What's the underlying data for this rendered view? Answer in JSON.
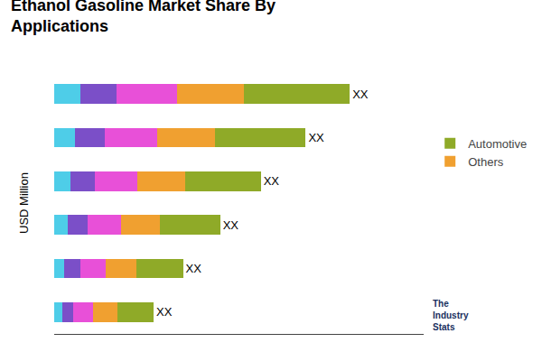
{
  "chart_data": {
    "type": "bar",
    "orientation": "horizontal",
    "stacked": true,
    "title": "Ethanol Gasoline Market Share By\nApplications",
    "ylabel": "USD Million",
    "categories": [
      null,
      null,
      null,
      null,
      null,
      null
    ],
    "series": [
      {
        "color": "#4ecde8",
        "values": [
          0.3,
          0.24,
          0.19,
          0.16,
          0.12,
          0.09
        ]
      },
      {
        "color": "#7b4fc8",
        "values": [
          0.42,
          0.35,
          0.28,
          0.23,
          0.18,
          0.13
        ]
      },
      {
        "color": "#e850d8",
        "values": [
          0.7,
          0.6,
          0.49,
          0.38,
          0.3,
          0.23
        ]
      },
      {
        "name": "Others",
        "color": "#f0a030",
        "values": [
          0.78,
          0.67,
          0.56,
          0.45,
          0.35,
          0.28
        ]
      },
      {
        "name": "Automotive",
        "color": "#8faa28",
        "values": [
          1.22,
          1.05,
          0.87,
          0.7,
          0.54,
          0.42
        ]
      }
    ],
    "bar_labels": [
      "XX",
      "XX",
      "XX",
      "XX",
      "XX",
      "XX"
    ],
    "xlim": [
      0,
      4.275
    ],
    "xticks": [],
    "grid": false,
    "legend": "right",
    "tick_labels": false,
    "annotations": [
      "The\nIndustry\nStats"
    ]
  }
}
